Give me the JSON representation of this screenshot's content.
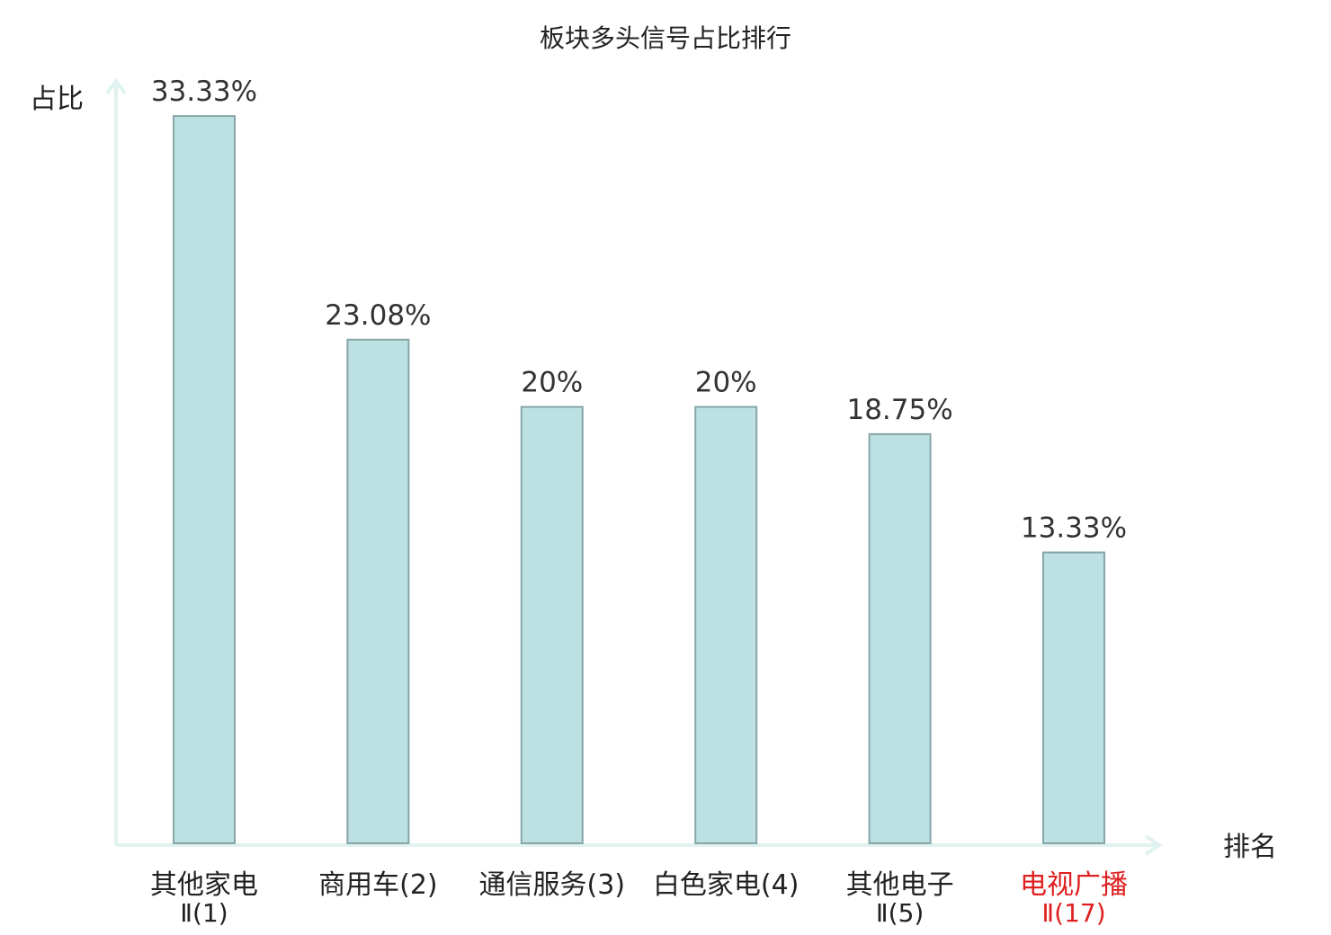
{
  "chart_data": {
    "type": "bar",
    "title": "板块多头信号占比排行",
    "ylabel": "占比",
    "xlabel": "排名",
    "ylim": [
      0,
      35
    ],
    "grid": false,
    "categories": [
      {
        "line1": "其他家电",
        "line2": "Ⅱ(1)",
        "highlight": false
      },
      {
        "line1": "商用车(2)",
        "line2": "",
        "highlight": false
      },
      {
        "line1": "通信服务(3)",
        "line2": "",
        "highlight": false
      },
      {
        "line1": "白色家电(4)",
        "line2": "",
        "highlight": false
      },
      {
        "line1": "其他电子",
        "line2": "Ⅱ(5)",
        "highlight": false
      },
      {
        "line1": "电视广播",
        "line2": "Ⅱ(17)",
        "highlight": true
      }
    ],
    "values": [
      33.33,
      23.08,
      20,
      20,
      18.75,
      13.33
    ],
    "value_labels": [
      "33.33%",
      "23.08%",
      "20%",
      "20%",
      "18.75%",
      "13.33%"
    ]
  },
  "colors": {
    "bar_fill": "#bde0e3",
    "bar_stroke": "#86a6a8",
    "axis": "#e0f2ef",
    "text": "#222222",
    "highlight": "#e02020"
  }
}
